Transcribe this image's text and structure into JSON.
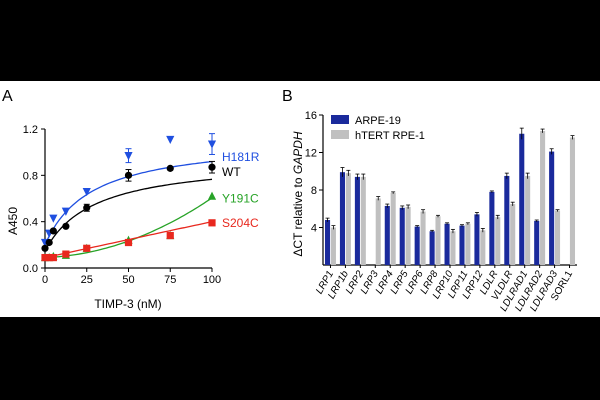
{
  "panels": {
    "a": "A",
    "b": "B"
  },
  "chart_data": [
    {
      "type": "scatter",
      "panel": "A",
      "xlabel": "TIMP-3 (nM)",
      "ylabel": "A450",
      "xlim": [
        0,
        100
      ],
      "ylim": [
        0,
        1.2
      ],
      "xticks": [
        0,
        25,
        50,
        75,
        100
      ],
      "yticks": [
        0.0,
        0.4,
        0.8,
        1.2
      ],
      "tick_labels_y": [
        "0.0",
        "0.4",
        "0.8",
        "1.2"
      ],
      "series": [
        {
          "name": "H181R",
          "color": "#1f4fe0",
          "marker": "triangle-down",
          "x": [
            0,
            2.5,
            5,
            12.5,
            25,
            50,
            75,
            100
          ],
          "y": [
            0.22,
            0.3,
            0.43,
            0.49,
            0.66,
            0.97,
            1.11,
            1.07
          ],
          "err": [
            0,
            0,
            0,
            0,
            0,
            0.06,
            0,
            0.09
          ],
          "fit": {
            "top": 1.12,
            "half": 28,
            "base": 0.2,
            "kind": "hyperbolic"
          }
        },
        {
          "name": "WT",
          "color": "#000000",
          "marker": "circle",
          "x": [
            0,
            2.5,
            5,
            12.5,
            25,
            50,
            75,
            100
          ],
          "y": [
            0.17,
            0.22,
            0.32,
            0.36,
            0.52,
            0.8,
            0.86,
            0.87
          ],
          "err": [
            0,
            0,
            0,
            0,
            0.03,
            0.05,
            0,
            0.05
          ],
          "fit": {
            "top": 0.95,
            "half": 30,
            "base": 0.15,
            "kind": "hyperbolic"
          }
        },
        {
          "name": "Y191C",
          "color": "#27a327",
          "marker": "triangle-up",
          "x": [
            0,
            2.5,
            5,
            12.5,
            25,
            50,
            75,
            100
          ],
          "y": [
            0.09,
            0.09,
            0.1,
            0.11,
            0.17,
            0.24,
            0.28,
            0.62
          ],
          "err": [
            0,
            0,
            0,
            0,
            0,
            0,
            0,
            0
          ],
          "fit": {
            "kind": "quadratic",
            "a": 4.6e-05,
            "b": 0.00055,
            "c": 0.09
          }
        },
        {
          "name": "S204C",
          "color": "#e8281e",
          "marker": "square",
          "x": [
            0,
            2.5,
            5,
            12.5,
            25,
            50,
            75,
            100
          ],
          "y": [
            0.09,
            0.09,
            0.09,
            0.12,
            0.17,
            0.22,
            0.28,
            0.39
          ],
          "err": [
            0,
            0,
            0,
            0,
            0,
            0,
            0,
            0.02
          ],
          "fit": {
            "kind": "linear",
            "m": 0.0031,
            "c": 0.09
          }
        }
      ]
    },
    {
      "type": "bar",
      "panel": "B",
      "ylabel_prefix": "ΔCT relative to ",
      "ylabel_gene": "GAPDH",
      "ylim": [
        0,
        16
      ],
      "yticks": [
        4,
        8,
        12,
        16
      ],
      "legend_placement": "top-left",
      "categories": [
        "LRP1",
        "LRP1b",
        "LRP2",
        "LRP3",
        "LRP4",
        "LRP5",
        "LRP6",
        "LRP8",
        "LRP10",
        "LRP11",
        "LRP12",
        "LDLR",
        "VLDLR",
        "LDLRAD1",
        "LDLRAD2",
        "LDLRAD3",
        "SORL1"
      ],
      "italic_categories": [
        "LRP1",
        "LRP1b",
        "LRP2",
        "LRP3",
        "LRP4",
        "LRP5",
        "LRP6",
        "LRP8",
        "LRP10",
        "LRP11",
        "LRP12",
        "LDLR",
        "VLDLR",
        "LDLRAD1",
        "LDLRAD2",
        "LDLRAD3"
      ],
      "series": [
        {
          "name": "ARPE-19",
          "color": "#1a2a9c",
          "values": [
            4.8,
            9.9,
            9.4,
            null,
            6.3,
            6.1,
            4.1,
            3.6,
            4.4,
            4.2,
            5.4,
            7.8,
            9.5,
            14.0,
            4.7,
            12.1,
            null
          ],
          "err": [
            0.2,
            0.5,
            0.3,
            0,
            0.2,
            0.2,
            0.1,
            0.1,
            0.1,
            0.1,
            0.2,
            0.1,
            0.3,
            0.6,
            0.1,
            0.3,
            0
          ]
        },
        {
          "name": "hTERT RPE-1",
          "color": "#c0c0c0",
          "values": [
            4.0,
            9.8,
            9.4,
            7.1,
            7.7,
            6.2,
            5.7,
            5.2,
            3.6,
            4.4,
            3.7,
            5.1,
            6.5,
            9.5,
            14.3,
            5.8,
            13.6
          ],
          "err": [
            0.2,
            0.3,
            0.3,
            0.2,
            0.1,
            0.2,
            0.2,
            0.1,
            0.2,
            0.1,
            0.2,
            0.2,
            0.2,
            0.3,
            0.2,
            0.1,
            0.2
          ]
        }
      ]
    }
  ]
}
